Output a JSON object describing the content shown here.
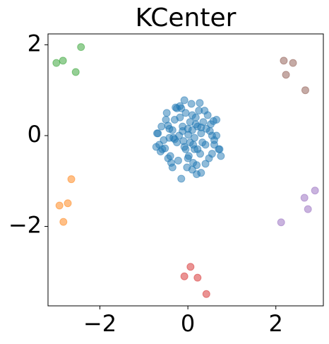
{
  "chart_data": {
    "type": "scatter",
    "title": "KCenter",
    "xlim": [
      -3.18,
      3.08
    ],
    "ylim": [
      -3.75,
      2.24
    ],
    "xticks": [
      {
        "value": -2,
        "label": "−2"
      },
      0,
      2
    ],
    "yticks": [
      {
        "value": -2,
        "label": "−2"
      },
      0,
      2
    ],
    "series": [
      {
        "color": "#1f77b4",
        "x": [
          0.01,
          -0.12,
          0.15,
          0.22,
          -0.25,
          0.05,
          -0.05,
          0.3,
          -0.35,
          0.4,
          -0.42,
          0.1,
          -0.18,
          0.28,
          -0.3,
          0.02,
          0.18,
          -0.08,
          0.35,
          -0.45,
          0.5,
          -0.55,
          0.6,
          -0.6,
          0.65,
          -0.68,
          0.72,
          -0.72,
          0.12,
          -0.15,
          0.25,
          -0.22,
          0.45,
          -0.4,
          0.55,
          -0.5,
          0.08,
          -0.02,
          0.2,
          -0.28,
          0.38,
          -0.38,
          0.48,
          -0.48,
          0.58,
          -0.58,
          0.0,
          -0.1,
          0.1,
          -0.2,
          0.15,
          -0.3,
          0.3,
          -0.05,
          0.05,
          0.42,
          -0.42,
          0.33,
          -0.33,
          0.6,
          -0.62,
          0.7,
          -0.7,
          0.2,
          -0.15,
          0.27,
          -0.25,
          0.52,
          -0.52,
          0.12,
          -0.08,
          0.0,
          0.4,
          -0.35,
          0.18,
          -0.12,
          0.65,
          0.3,
          -0.18,
          0.1,
          0.75,
          -0.65,
          0.22,
          -0.45,
          0.55
        ],
        "values": [
          0.02,
          0.1,
          -0.05,
          0.2,
          -0.15,
          0.3,
          -0.3,
          0.05,
          0.12,
          -0.2,
          -0.05,
          0.45,
          0.4,
          -0.4,
          0.35,
          -0.45,
          0.25,
          -0.25,
          0.3,
          0.22,
          0.1,
          -0.1,
          -0.2,
          0.2,
          0.0,
          0.05,
          -0.3,
          -0.25,
          -0.6,
          0.6,
          0.55,
          -0.55,
          0.45,
          -0.45,
          -0.4,
          0.35,
          0.7,
          -0.7,
          -0.65,
          0.62,
          0.55,
          -0.6,
          -0.5,
          0.5,
          0.32,
          -0.3,
          0.15,
          -0.12,
          0.12,
          0.0,
          -0.3,
          -0.08,
          0.18,
          0.5,
          -0.15,
          0.15,
          0.15,
          -0.15,
          -0.05,
          -0.1,
          -0.35,
          -0.3,
          0.05,
          -0.85,
          -0.95,
          0.72,
          0.6,
          0.25,
          -0.28,
          -0.2,
          0.78,
          -0.5,
          -0.62,
          -0.7,
          0.4,
          0.2,
          0.35,
          -0.82,
          0.65,
          -0.75,
          -0.45,
          -0.2,
          -0.3,
          -0.5,
          0.0
        ]
      },
      {
        "color": "#ff7f0e",
        "x": [
          -2.65,
          -2.92,
          -2.73,
          -2.83
        ],
        "values": [
          -0.96,
          -1.54,
          -1.49,
          -1.9
        ]
      },
      {
        "color": "#2ca02c",
        "x": [
          -2.99,
          -2.84,
          -2.55,
          -2.43
        ],
        "values": [
          1.6,
          1.65,
          1.4,
          1.95
        ]
      },
      {
        "color": "#d62728",
        "x": [
          0.06,
          -0.08,
          0.22,
          0.42
        ],
        "values": [
          -2.89,
          -3.1,
          -3.13,
          -3.49
        ]
      },
      {
        "color": "#9467bd",
        "x": [
          2.89,
          2.65,
          2.73,
          2.12
        ],
        "values": [
          -1.21,
          -1.37,
          -1.62,
          -1.91
        ]
      },
      {
        "color": "#8c564b",
        "x": [
          2.18,
          2.39,
          2.23,
          2.67
        ],
        "values": [
          1.65,
          1.6,
          1.34,
          1.0
        ]
      }
    ]
  }
}
